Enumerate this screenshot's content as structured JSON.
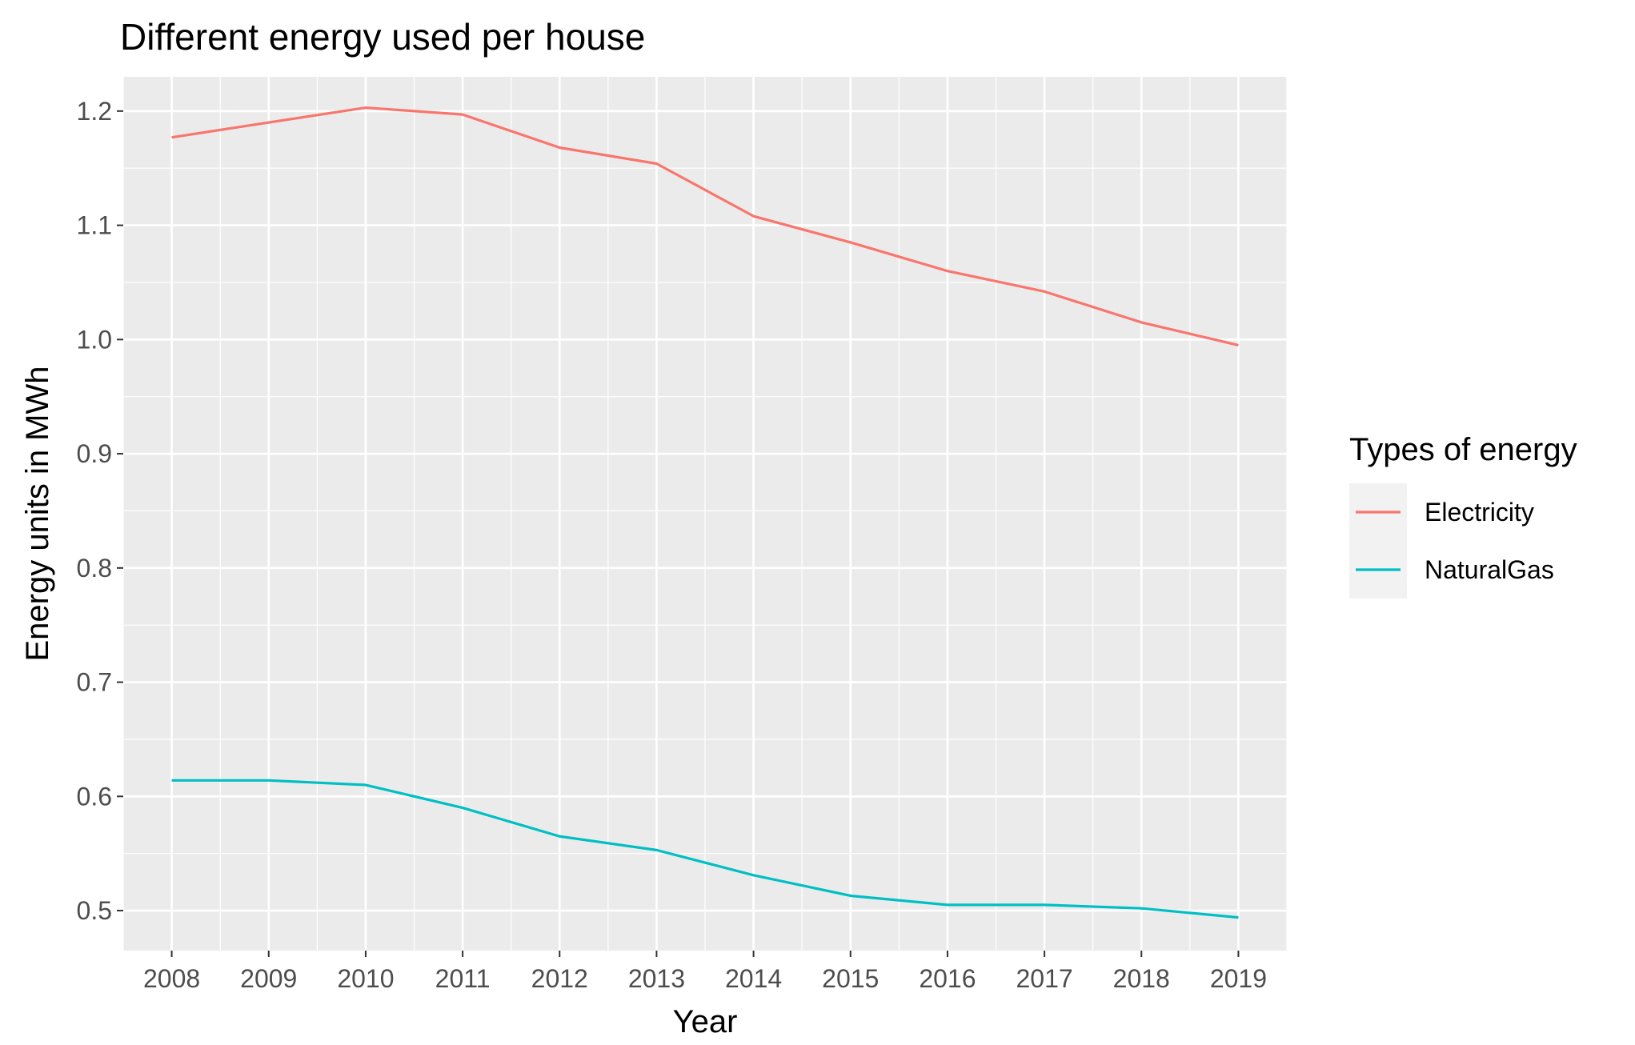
{
  "chart_data": {
    "type": "line",
    "title": "Different energy used per house",
    "xlabel": "Year",
    "ylabel": "Energy units in MWh",
    "x": [
      2008,
      2009,
      2010,
      2011,
      2012,
      2013,
      2014,
      2015,
      2016,
      2017,
      2018,
      2019
    ],
    "x_tick_labels": [
      "2008",
      "2009",
      "2010",
      "2011",
      "2012",
      "2013",
      "2014",
      "2015",
      "2016",
      "2017",
      "2018",
      "2019"
    ],
    "y_tick_labels": [
      "0.5",
      "0.6",
      "0.7",
      "0.8",
      "0.9",
      "1.0",
      "1.1",
      "1.2"
    ],
    "y_ticks": [
      0.5,
      0.6,
      0.7,
      0.8,
      0.9,
      1.0,
      1.1,
      1.2
    ],
    "xlim": [
      2007.5,
      2019.5
    ],
    "ylim": [
      0.465,
      1.23
    ],
    "grid": true,
    "legend": {
      "title": "Types of energy",
      "position": "right"
    },
    "series": [
      {
        "name": "Electricity",
        "color": "#F8766D",
        "values": [
          1.177,
          1.19,
          1.203,
          1.197,
          1.168,
          1.154,
          1.108,
          1.085,
          1.06,
          1.042,
          1.015,
          0.995
        ]
      },
      {
        "name": "NaturalGas",
        "color": "#00BFC4",
        "values": [
          0.614,
          0.614,
          0.61,
          0.59,
          0.565,
          0.553,
          0.531,
          0.513,
          0.505,
          0.505,
          0.502,
          0.494
        ]
      }
    ],
    "panel_background": "#EBEBEB",
    "grid_color": "#FFFFFF"
  }
}
